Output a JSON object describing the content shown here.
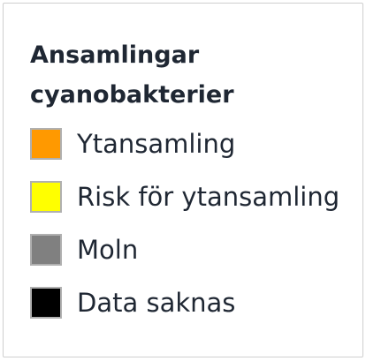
{
  "legend": {
    "title": "Ansamlingar cyanobakterier",
    "items": [
      {
        "label": "Ytansamling",
        "color": "#ff9900"
      },
      {
        "label": "Risk för ytansamling",
        "color": "#ffff00"
      },
      {
        "label": "Moln",
        "color": "#808080"
      },
      {
        "label": "Data saknas",
        "color": "#000000"
      }
    ]
  }
}
